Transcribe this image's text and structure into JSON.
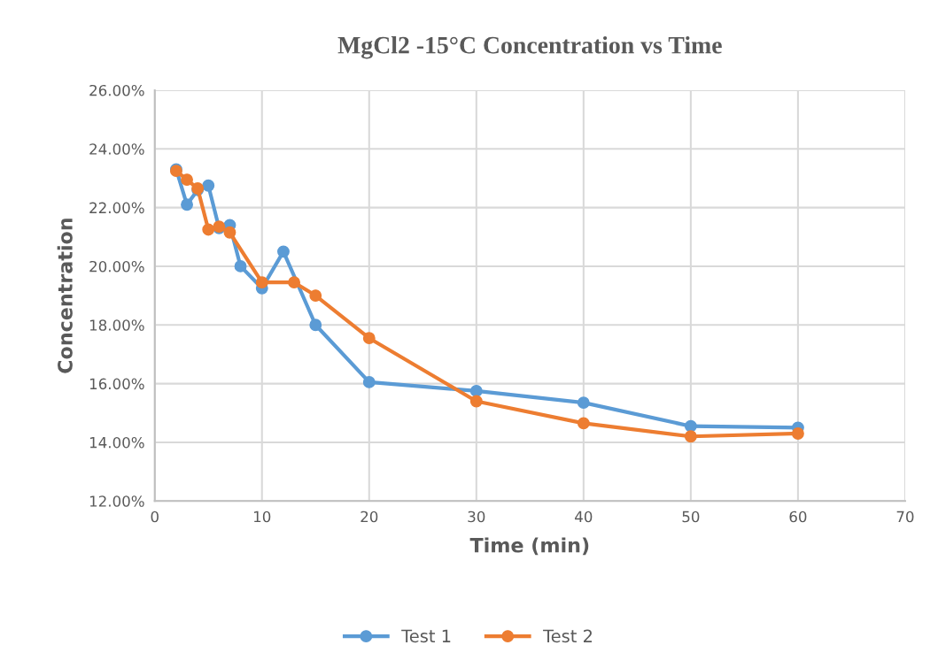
{
  "chart_data": {
    "type": "line",
    "title": "MgCl2 -15°C Concentration vs Time",
    "xlabel": "Time (min)",
    "ylabel": "Concentration",
    "series": [
      {
        "name": "Test 1",
        "color": "#5b9bd5",
        "x": [
          2,
          3,
          4,
          5,
          6,
          7,
          8,
          10,
          12,
          15,
          20,
          30,
          40,
          50,
          60
        ],
        "values": [
          23.3,
          22.1,
          22.6,
          22.75,
          21.3,
          21.4,
          20.0,
          19.25,
          20.5,
          18.0,
          16.05,
          15.75,
          15.35,
          14.55,
          14.5
        ]
      },
      {
        "name": "Test 2",
        "color": "#ed7d31",
        "x": [
          2,
          3,
          4,
          5,
          6,
          7,
          10,
          13,
          15,
          20,
          30,
          40,
          50,
          60
        ],
        "values": [
          23.25,
          22.95,
          22.65,
          21.25,
          21.35,
          21.15,
          19.45,
          19.45,
          19.0,
          17.55,
          15.4,
          14.65,
          14.2,
          14.3
        ]
      }
    ],
    "xlim": [
      0,
      70
    ],
    "xticks": [
      0,
      10,
      20,
      30,
      40,
      50,
      60,
      70
    ],
    "ylim": [
      12,
      26
    ],
    "yticks": [
      {
        "value": 12,
        "label": "12.00%"
      },
      {
        "value": 14,
        "label": "14.00%"
      },
      {
        "value": 16,
        "label": "16.00%"
      },
      {
        "value": 18,
        "label": "18.00%"
      },
      {
        "value": 20,
        "label": "20.00%"
      },
      {
        "value": 22,
        "label": "22.00%"
      },
      {
        "value": 24,
        "label": "24.00%"
      },
      {
        "value": 26,
        "label": "26.00%"
      }
    ],
    "grid": true,
    "legend": "bottom",
    "marker": "circle",
    "line_style": "solid"
  }
}
